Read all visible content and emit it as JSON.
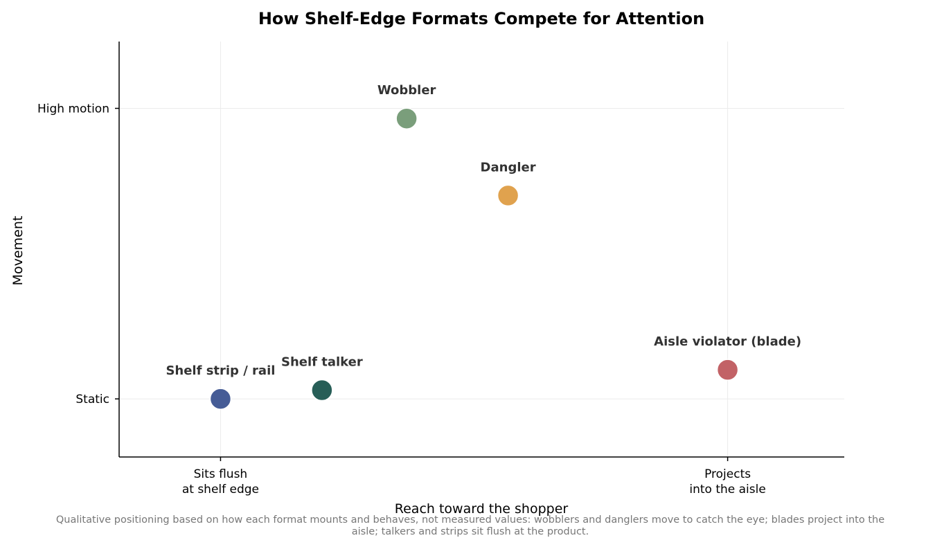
{
  "chart_data": {
    "type": "scatter",
    "title": "How Shelf-Edge Formats Compete for Attention",
    "xlabel": "Reach toward the shopper",
    "ylabel": "Movement",
    "xlim": [
      -0.2,
      1.23
    ],
    "ylim": [
      -0.2,
      1.23
    ],
    "grid": true,
    "x_ticks": [
      {
        "value": 0,
        "label": [
          "Sits flush",
          "at shelf edge"
        ]
      },
      {
        "value": 1,
        "label": [
          "Projects",
          "into the aisle"
        ]
      }
    ],
    "y_ticks": [
      {
        "value": 0,
        "label": "Static"
      },
      {
        "value": 1,
        "label": "High motion"
      }
    ],
    "points": [
      {
        "name": "Shelf strip / rail",
        "x": 0.0,
        "y": 0.0,
        "color": "#465c96"
      },
      {
        "name": "Shelf talker",
        "x": 0.2,
        "y": 0.03,
        "color": "#275e57"
      },
      {
        "name": "Wobbler",
        "x": 0.367,
        "y": 0.965,
        "color": "#7a9e7b"
      },
      {
        "name": "Dangler",
        "x": 0.567,
        "y": 0.7,
        "color": "#e0a24e"
      },
      {
        "name": "Aisle violator (blade)",
        "x": 1.0,
        "y": 0.1,
        "color": "#c26266"
      }
    ],
    "caption": [
      "Qualitative positioning based on how each format mounts and behaves, not measured values: wobblers and danglers move to catch the eye; blades project into the",
      "aisle; talkers and strips sit flush at the product."
    ]
  }
}
